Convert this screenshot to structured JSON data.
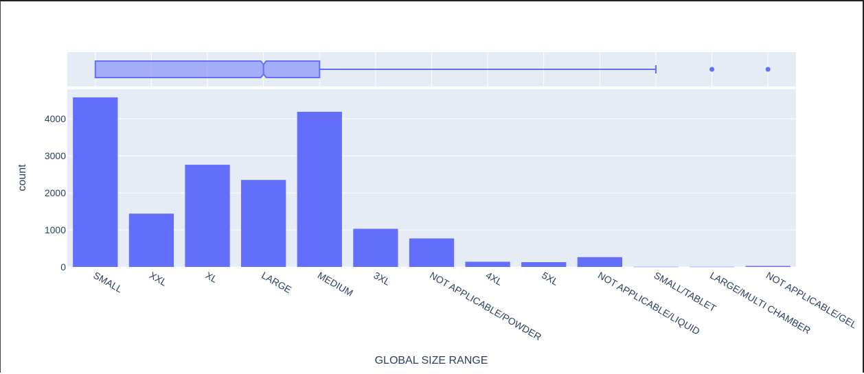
{
  "chart_data": {
    "type": "bar",
    "title": "",
    "xlabel": "GLOBAL SIZE RANGE",
    "ylabel": "count",
    "categories": [
      "SMALL",
      "XXL",
      "XL",
      "LARGE",
      "MEDIUM",
      "3XL",
      "NOT APPLICABLE/POWDER",
      "4XL",
      "5XL",
      "NOT APPLICABLE/LIQUID",
      "SMALL/TABLET",
      "LARGE/MULTI CHAMBER",
      "NOT APPLICABLE/GEL"
    ],
    "values": [
      4580,
      1440,
      2760,
      2350,
      4190,
      1030,
      770,
      140,
      130,
      265,
      5,
      5,
      28
    ],
    "ylim": [
      0,
      4800
    ],
    "yticks": [
      0,
      1000,
      2000,
      3000,
      4000
    ],
    "ytick_labels": [
      "0",
      "1000",
      "2000",
      "3000",
      "4000"
    ],
    "grid": true,
    "bar_color": "#636efa",
    "plot_bg": "#e5ecf6",
    "marginal_box": {
      "orientation": "horizontal",
      "notched": true,
      "color": "#636efa",
      "fill": "rgba(99,110,250,0.5)",
      "q1_index": 0,
      "median_index": 3,
      "q3_index": 4,
      "whisker_low_index": 0,
      "whisker_high_index": 10,
      "notch_low_index": 2.95,
      "notch_high_index": 3.05,
      "outlier_indices": [
        11,
        12
      ]
    }
  }
}
